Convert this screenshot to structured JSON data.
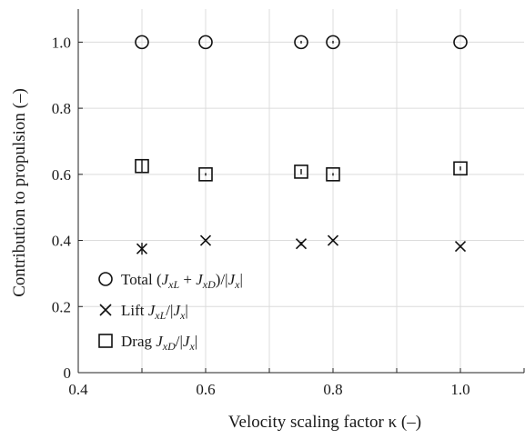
{
  "chart_data": {
    "type": "scatter",
    "xlabel": "Velocity scaling factor κ (–)",
    "ylabel": "Contribution to propulsion (–)",
    "xlim": [
      0.4,
      1.1
    ],
    "ylim": [
      0,
      1.1
    ],
    "x_ticks": [
      0.4,
      0.6,
      0.8,
      1.0
    ],
    "x_tick_labels": [
      "0.4",
      "0.6",
      "0.8",
      "1.0"
    ],
    "y_ticks": [
      0,
      0.2,
      0.4,
      0.6,
      0.8,
      1.0
    ],
    "y_tick_labels": [
      "0",
      "0.2",
      "0.4",
      "0.6",
      "0.8",
      "1.0"
    ],
    "grid": true,
    "legend_position": "bottom-left",
    "series": [
      {
        "name": "Total (J_xL + J_xD)/|J_x|",
        "marker": "circle",
        "x": [
          0.5,
          0.6,
          0.75,
          0.8,
          1.0
        ],
        "y": [
          1.0,
          1.0,
          1.0,
          1.0,
          1.0
        ],
        "err": [
          0,
          0,
          0.004,
          0.004,
          0
        ]
      },
      {
        "name": "Lift J_xL/|J_x|",
        "marker": "cross",
        "x": [
          0.5,
          0.6,
          0.75,
          0.8,
          1.0
        ],
        "y": [
          0.375,
          0.4,
          0.39,
          0.4,
          0.382
        ],
        "err": [
          0.018,
          0.004,
          0.006,
          0.004,
          0.004
        ]
      },
      {
        "name": "Drag J_xD/|J_x|",
        "marker": "square",
        "x": [
          0.5,
          0.6,
          0.75,
          0.8,
          1.0
        ],
        "y": [
          0.625,
          0.6,
          0.608,
          0.6,
          0.618
        ],
        "err": [
          0.018,
          0.004,
          0.008,
          0.004,
          0.006
        ]
      }
    ]
  },
  "legend": {
    "total": {
      "pre": "Total (",
      "a": "J",
      "a_sub": "xL",
      "plus": " + ",
      "b": "J",
      "b_sub": "xD",
      "mid": ")/|",
      "c": "J",
      "c_sub": "x",
      "post": "|"
    },
    "lift": {
      "pre": "Lift ",
      "a": "J",
      "a_sub": "xL",
      "mid": "/|",
      "c": "J",
      "c_sub": "x",
      "post": "|"
    },
    "drag": {
      "pre": "Drag ",
      "a": "J",
      "a_sub": "xD",
      "mid": "/|",
      "c": "J",
      "c_sub": "x",
      "post": "|"
    }
  },
  "colors": {
    "marker": "#111111",
    "grid": "#dcdcdc",
    "axis": "#222222"
  }
}
